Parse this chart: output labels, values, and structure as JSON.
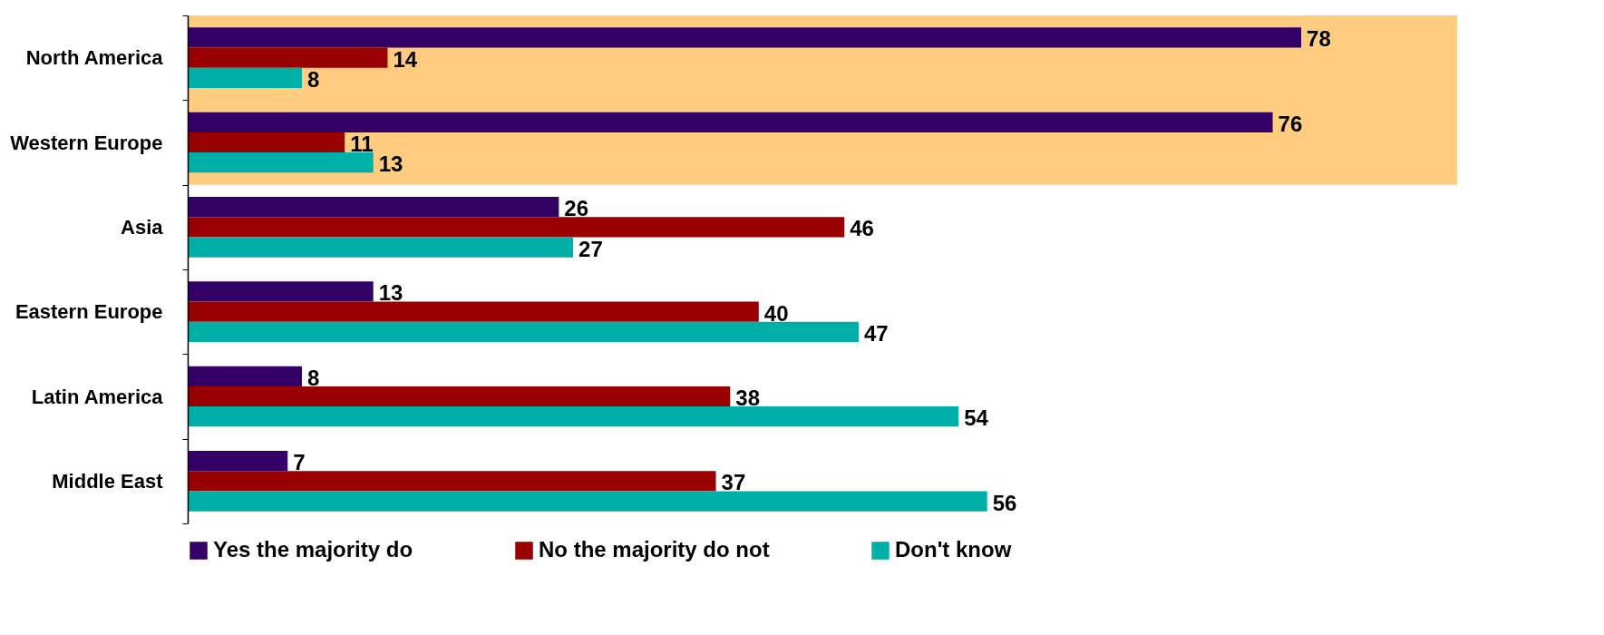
{
  "chart_data": {
    "type": "bar",
    "orientation": "horizontal",
    "categories": [
      "North America",
      "Western Europe",
      "Asia",
      "Eastern Europe",
      "Latin America",
      "Middle East"
    ],
    "series": [
      {
        "name": "Yes the majority do",
        "color": "#330066",
        "values": [
          78,
          76,
          26,
          13,
          8,
          7
        ]
      },
      {
        "name": "No the majority do not",
        "color": "#990000",
        "values": [
          14,
          11,
          46,
          40,
          38,
          37
        ]
      },
      {
        "name": "Don't know",
        "color": "#00b0a8",
        "values": [
          8,
          13,
          27,
          47,
          54,
          56
        ]
      }
    ],
    "data_labels": true,
    "legend": "bottom",
    "bands": [
      {
        "axis": "y",
        "from": "North America",
        "to": "Western Europe",
        "color": "#ffcc80"
      }
    ]
  }
}
